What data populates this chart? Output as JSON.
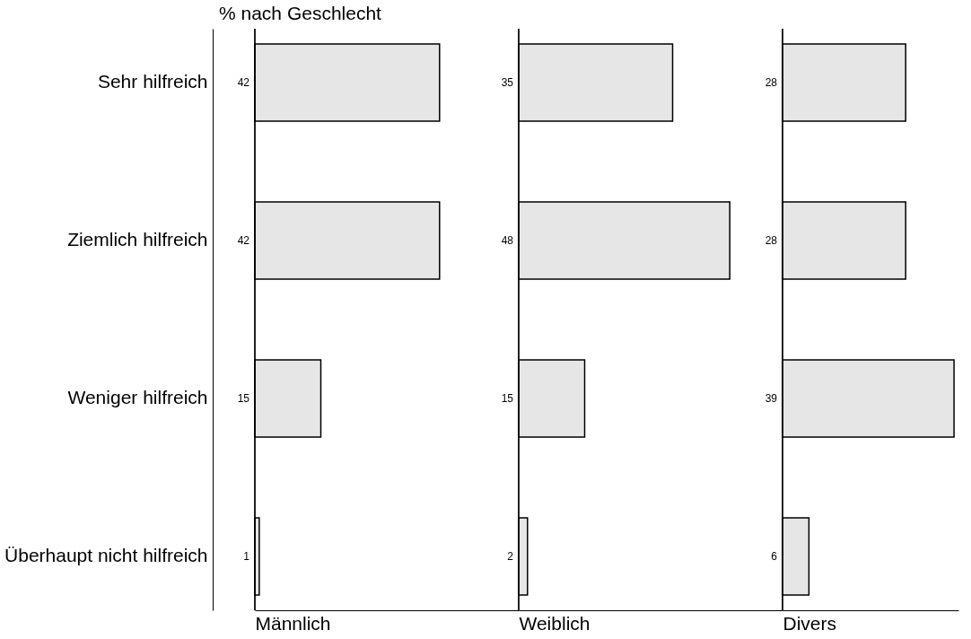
{
  "chart_data": [
    {
      "type": "bar",
      "orientation": "horizontal",
      "title": "% nach Geschlecht",
      "xlabel": "Männlich",
      "categories": [
        "Sehr hilfreich",
        "Ziemlich hilfreich",
        "Weniger hilfreich",
        "Überhaupt nicht hilfreich"
      ],
      "values": [
        42,
        42,
        15,
        1
      ],
      "color": "#e6e6e6",
      "xlim": [
        0,
        60
      ],
      "data_labels": true,
      "tick_labels": "y"
    },
    {
      "type": "bar",
      "orientation": "horizontal",
      "xlabel": "Weiblich",
      "categories": [
        null,
        null,
        null,
        null
      ],
      "values": [
        35,
        48,
        15,
        2
      ],
      "color": "#e6e6e6",
      "xlim": [
        0,
        60
      ],
      "data_labels": true,
      "tick_labels": false
    },
    {
      "type": "bar",
      "orientation": "horizontal",
      "xlabel": "Divers",
      "categories": [
        null,
        null,
        null,
        null
      ],
      "values": [
        28,
        28,
        39,
        6
      ],
      "color": "#e6e6e6",
      "xlim": [
        0,
        40
      ],
      "data_labels": true,
      "tick_labels": false
    }
  ]
}
